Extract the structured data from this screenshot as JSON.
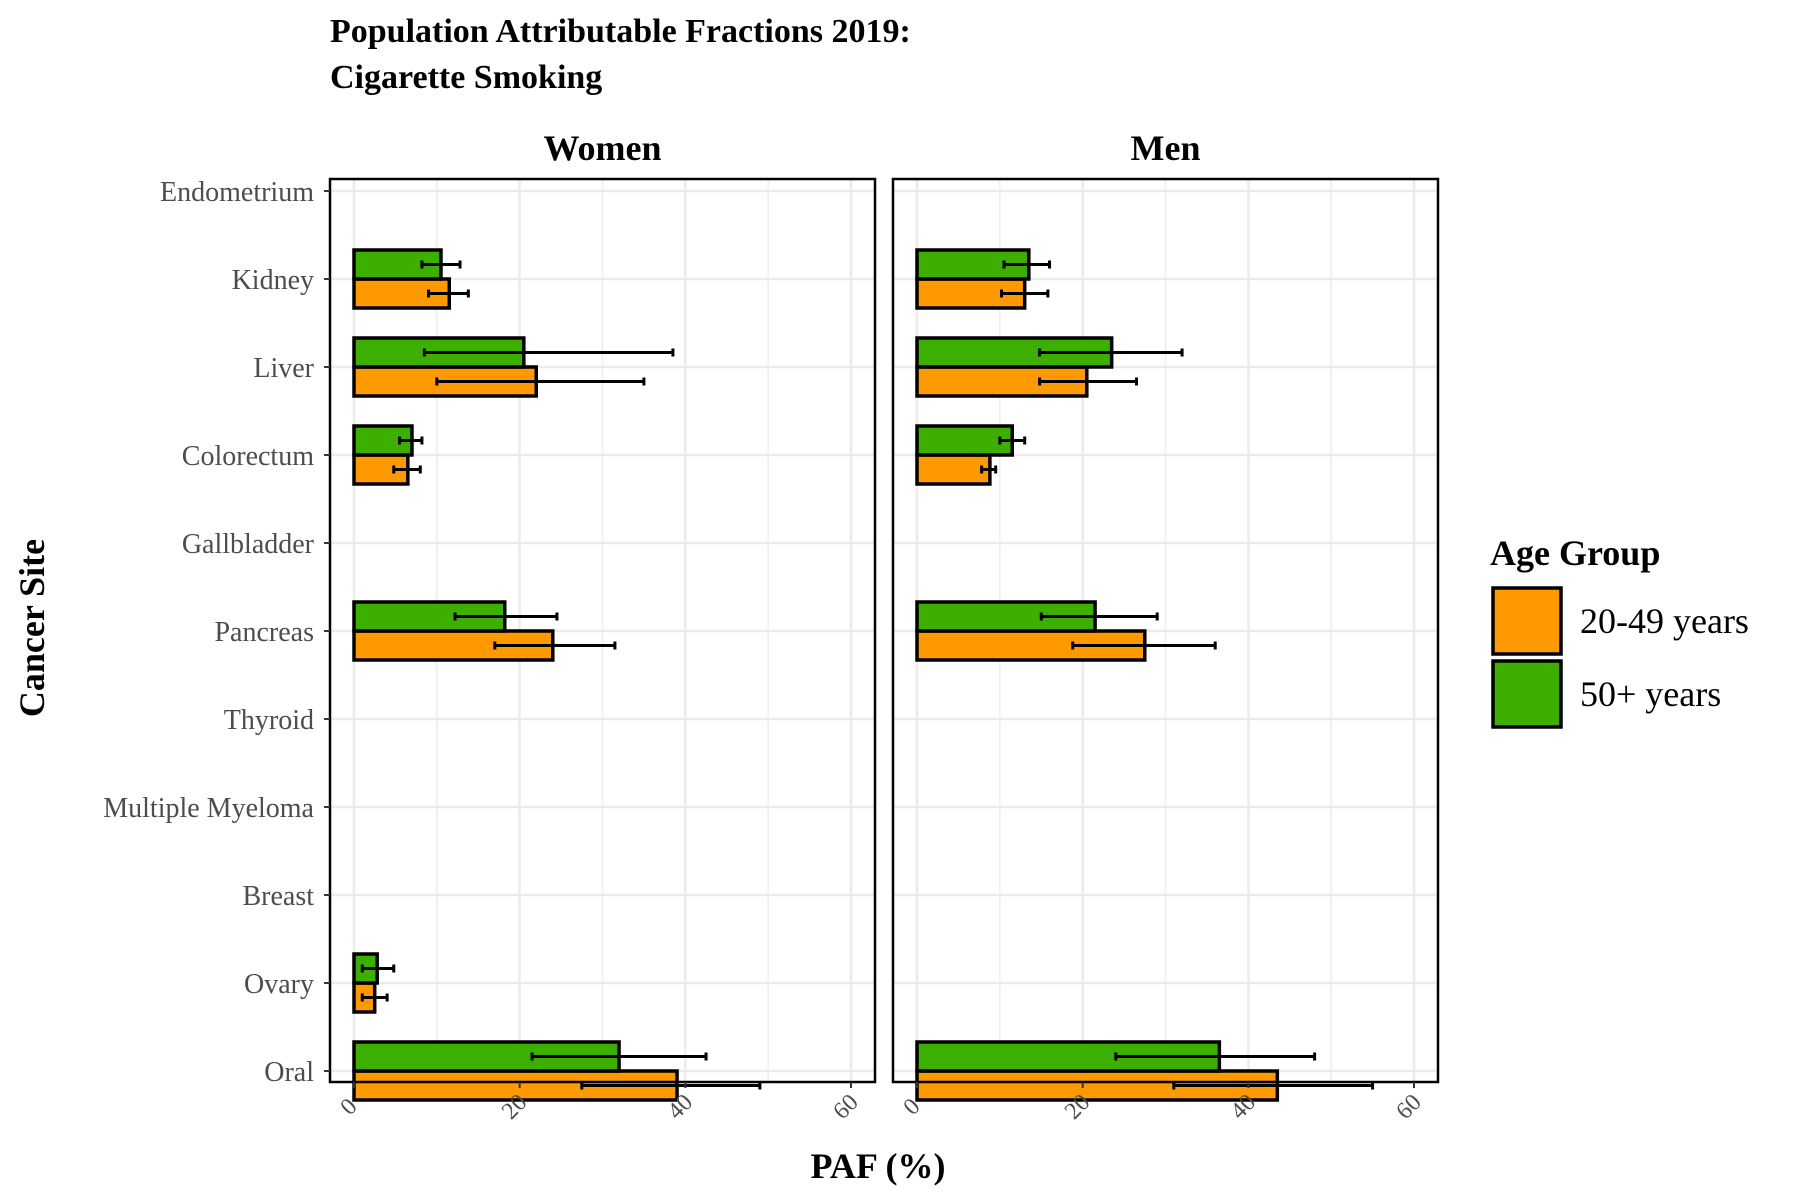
{
  "chart_data": {
    "type": "bar",
    "orientation": "horizontal",
    "title_line1": "Population Attributable Fractions 2019:",
    "title_line2": "Cigarette Smoking",
    "xlabel": "PAF (%)",
    "ylabel": "Cancer Site",
    "xlim": [
      0,
      60
    ],
    "x_ticks": [
      "0",
      "20",
      "40",
      "60"
    ],
    "grid": true,
    "legend": {
      "title": "Age Group",
      "position": "right",
      "entries": [
        {
          "label": "20-49 years",
          "color": "#FF9900"
        },
        {
          "label": "50+ years",
          "color": "#3CAF00"
        }
      ]
    },
    "categories": [
      "Endometrium",
      "Kidney",
      "Liver",
      "Colorectum",
      "Gallbladder",
      "Pancreas",
      "Thyroid",
      "Multiple Myeloma",
      "Breast",
      "Ovary",
      "Oral"
    ],
    "panels": [
      {
        "name": "Women",
        "series": [
          {
            "name": "20-49 years",
            "values": [
              0,
              11.5,
              22,
              6.5,
              0,
              24,
              0,
              0,
              0,
              2.5,
              39
            ],
            "ci_low": [
              0,
              9,
              10,
              4.8,
              0,
              17,
              0,
              0,
              0,
              1,
              27.5
            ],
            "ci_high": [
              0,
              13.8,
              35,
              8,
              0,
              31.5,
              0,
              0,
              0,
              4,
              49
            ]
          },
          {
            "name": "50+ years",
            "values": [
              0,
              10.5,
              20.5,
              7,
              0,
              18.2,
              0,
              0,
              0,
              2.8,
              32
            ],
            "ci_low": [
              0,
              8.2,
              8.5,
              5.5,
              0,
              12.2,
              0,
              0,
              0,
              1,
              21.5
            ],
            "ci_high": [
              0,
              12.8,
              38.5,
              8.2,
              0,
              24.5,
              0,
              0,
              0,
              4.8,
              42.5
            ]
          }
        ]
      },
      {
        "name": "Men",
        "series": [
          {
            "name": "20-49 years",
            "values": [
              0,
              13,
              20.5,
              8.8,
              0,
              27.5,
              0,
              0,
              0,
              0,
              43.5
            ],
            "ci_low": [
              0,
              10.2,
              14.8,
              7.8,
              0,
              18.8,
              0,
              0,
              0,
              0,
              31
            ],
            "ci_high": [
              0,
              15.8,
              26.5,
              9.5,
              0,
              36,
              0,
              0,
              0,
              0,
              55
            ]
          },
          {
            "name": "50+ years",
            "values": [
              0,
              13.5,
              23.5,
              11.5,
              0,
              21.5,
              0,
              0,
              0,
              0,
              36.5
            ],
            "ci_low": [
              0,
              10.5,
              14.8,
              10,
              0,
              15,
              0,
              0,
              0,
              0,
              24
            ],
            "ci_high": [
              0,
              16,
              32,
              13,
              0,
              29,
              0,
              0,
              0,
              0,
              48
            ]
          }
        ]
      }
    ]
  }
}
